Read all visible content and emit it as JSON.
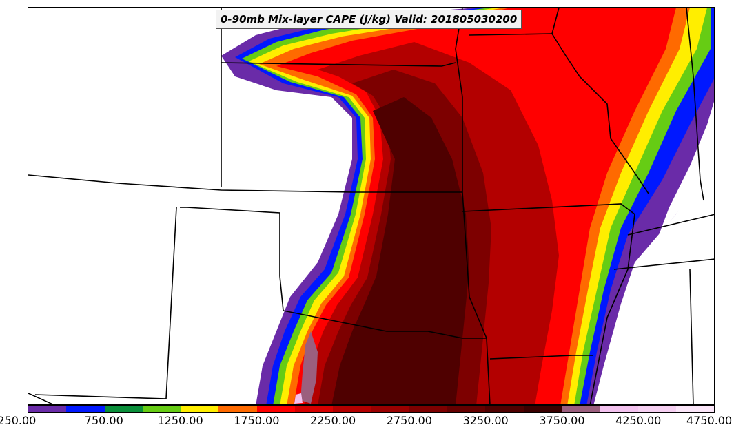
{
  "title": "0-90mb Mix-layer CAPE (J/kg) Valid: 201805030200",
  "colorbar": {
    "min": 250,
    "max": 4750,
    "colors": [
      "#6a2ba8",
      "#0018ff",
      "#0a8f3a",
      "#66cc14",
      "#ffee00",
      "#ff6a00",
      "#ff0000",
      "#d60000",
      "#b30000",
      "#9a0000",
      "#7d0000",
      "#650000",
      "#4f0000",
      "#3a0000",
      "#9b5f7e",
      "#f3c2ef",
      "#f6d0f2",
      "#fbe6f9"
    ],
    "tick_labels": [
      "250.00",
      "750.00",
      "1250.00",
      "1750.00",
      "2250.00",
      "2750.00",
      "3250.00",
      "3750.00",
      "4250.00",
      "4750.00"
    ]
  }
}
